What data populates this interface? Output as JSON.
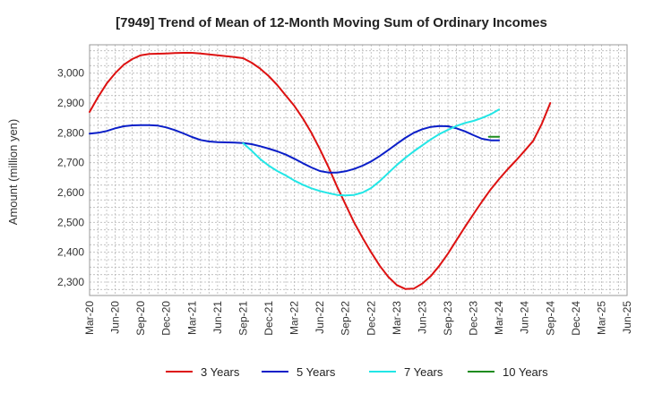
{
  "chart_data": {
    "type": "line",
    "title": "[7949]  Trend of Mean of 12-Month Moving Sum of Ordinary Incomes",
    "xlabel": "",
    "ylabel": "Amount (million yen)",
    "ylim": [
      2255,
      3095
    ],
    "yticks": [
      2300,
      2400,
      2500,
      2600,
      2700,
      2800,
      2900,
      3000
    ],
    "ytick_labels": [
      "2,300",
      "2,400",
      "2,500",
      "2,600",
      "2,700",
      "2,800",
      "2,900",
      "3,000"
    ],
    "x_categories": [
      "Mar-20",
      "Jun-20",
      "Sep-20",
      "Dec-20",
      "Mar-21",
      "Jun-21",
      "Sep-21",
      "Dec-21",
      "Mar-22",
      "Jun-22",
      "Sep-22",
      "Dec-22",
      "Mar-23",
      "Jun-23",
      "Sep-23",
      "Dec-23",
      "Mar-24",
      "Jun-24",
      "Sep-24",
      "Dec-24",
      "Mar-25",
      "Jun-25"
    ],
    "grid": true,
    "legend_position": "bottom",
    "series": [
      {
        "name": "3 Years",
        "color": "#dd1111",
        "points": [
          [
            0,
            2870
          ],
          [
            0.333,
            2920
          ],
          [
            0.667,
            2965
          ],
          [
            1,
            3000
          ],
          [
            1.333,
            3028
          ],
          [
            1.667,
            3047
          ],
          [
            2,
            3060
          ],
          [
            2.333,
            3064
          ],
          [
            2.667,
            3065
          ],
          [
            3,
            3066
          ],
          [
            3.333,
            3067
          ],
          [
            3.667,
            3068
          ],
          [
            4,
            3068
          ],
          [
            4.333,
            3066
          ],
          [
            4.667,
            3063
          ],
          [
            5,
            3060
          ],
          [
            5.333,
            3057
          ],
          [
            5.667,
            3054
          ],
          [
            6,
            3050
          ],
          [
            6.333,
            3035
          ],
          [
            6.667,
            3015
          ],
          [
            7,
            2990
          ],
          [
            7.333,
            2960
          ],
          [
            7.667,
            2925
          ],
          [
            8,
            2890
          ],
          [
            8.333,
            2848
          ],
          [
            8.667,
            2800
          ],
          [
            9,
            2745
          ],
          [
            9.333,
            2685
          ],
          [
            9.667,
            2620
          ],
          [
            10,
            2560
          ],
          [
            10.333,
            2500
          ],
          [
            10.667,
            2448
          ],
          [
            11,
            2400
          ],
          [
            11.333,
            2355
          ],
          [
            11.667,
            2318
          ],
          [
            12,
            2290
          ],
          [
            12.333,
            2277
          ],
          [
            12.667,
            2278
          ],
          [
            13,
            2295
          ],
          [
            13.333,
            2320
          ],
          [
            13.667,
            2355
          ],
          [
            14,
            2395
          ],
          [
            14.333,
            2440
          ],
          [
            14.667,
            2485
          ],
          [
            15,
            2528
          ],
          [
            15.333,
            2570
          ],
          [
            15.667,
            2610
          ],
          [
            16,
            2645
          ],
          [
            16.333,
            2678
          ],
          [
            16.667,
            2708
          ],
          [
            17,
            2740
          ],
          [
            17.333,
            2773
          ],
          [
            17.667,
            2830
          ],
          [
            18,
            2900
          ]
        ]
      },
      {
        "name": "5 Years",
        "color": "#0a1ec8",
        "points": [
          [
            0,
            2797
          ],
          [
            0.333,
            2800
          ],
          [
            0.667,
            2806
          ],
          [
            1,
            2815
          ],
          [
            1.333,
            2822
          ],
          [
            1.667,
            2825
          ],
          [
            2,
            2826
          ],
          [
            2.333,
            2826
          ],
          [
            2.667,
            2824
          ],
          [
            3,
            2818
          ],
          [
            3.333,
            2809
          ],
          [
            3.667,
            2798
          ],
          [
            4,
            2786
          ],
          [
            4.333,
            2776
          ],
          [
            4.667,
            2771
          ],
          [
            5,
            2769
          ],
          [
            5.333,
            2768
          ],
          [
            5.667,
            2767
          ],
          [
            6,
            2766
          ],
          [
            6.333,
            2762
          ],
          [
            6.667,
            2755
          ],
          [
            7,
            2747
          ],
          [
            7.333,
            2738
          ],
          [
            7.667,
            2727
          ],
          [
            8,
            2713
          ],
          [
            8.333,
            2698
          ],
          [
            8.667,
            2684
          ],
          [
            9,
            2672
          ],
          [
            9.333,
            2667
          ],
          [
            9.667,
            2667
          ],
          [
            10,
            2671
          ],
          [
            10.333,
            2679
          ],
          [
            10.667,
            2690
          ],
          [
            11,
            2704
          ],
          [
            11.333,
            2722
          ],
          [
            11.667,
            2742
          ],
          [
            12,
            2763
          ],
          [
            12.333,
            2783
          ],
          [
            12.667,
            2800
          ],
          [
            13,
            2812
          ],
          [
            13.333,
            2820
          ],
          [
            13.667,
            2823
          ],
          [
            14,
            2822
          ],
          [
            14.333,
            2815
          ],
          [
            14.667,
            2805
          ],
          [
            15,
            2792
          ],
          [
            15.333,
            2780
          ],
          [
            15.667,
            2775
          ],
          [
            16,
            2775
          ]
        ]
      },
      {
        "name": "7 Years",
        "color": "#22e6e6",
        "points": [
          [
            6,
            2765
          ],
          [
            6.333,
            2740
          ],
          [
            6.667,
            2712
          ],
          [
            7,
            2690
          ],
          [
            7.333,
            2672
          ],
          [
            7.667,
            2657
          ],
          [
            8,
            2640
          ],
          [
            8.333,
            2626
          ],
          [
            8.667,
            2614
          ],
          [
            9,
            2605
          ],
          [
            9.333,
            2598
          ],
          [
            9.667,
            2592
          ],
          [
            10,
            2590
          ],
          [
            10.333,
            2592
          ],
          [
            10.667,
            2600
          ],
          [
            11,
            2615
          ],
          [
            11.333,
            2638
          ],
          [
            11.667,
            2665
          ],
          [
            12,
            2692
          ],
          [
            12.333,
            2716
          ],
          [
            12.667,
            2738
          ],
          [
            13,
            2758
          ],
          [
            13.333,
            2778
          ],
          [
            13.667,
            2796
          ],
          [
            14,
            2810
          ],
          [
            14.333,
            2823
          ],
          [
            14.667,
            2833
          ],
          [
            15,
            2840
          ],
          [
            15.333,
            2850
          ],
          [
            15.667,
            2862
          ],
          [
            16,
            2878
          ]
        ]
      },
      {
        "name": "10 Years",
        "color": "#1e8c1e",
        "points": [
          [
            15.6,
            2787
          ],
          [
            16,
            2787
          ]
        ]
      }
    ]
  }
}
